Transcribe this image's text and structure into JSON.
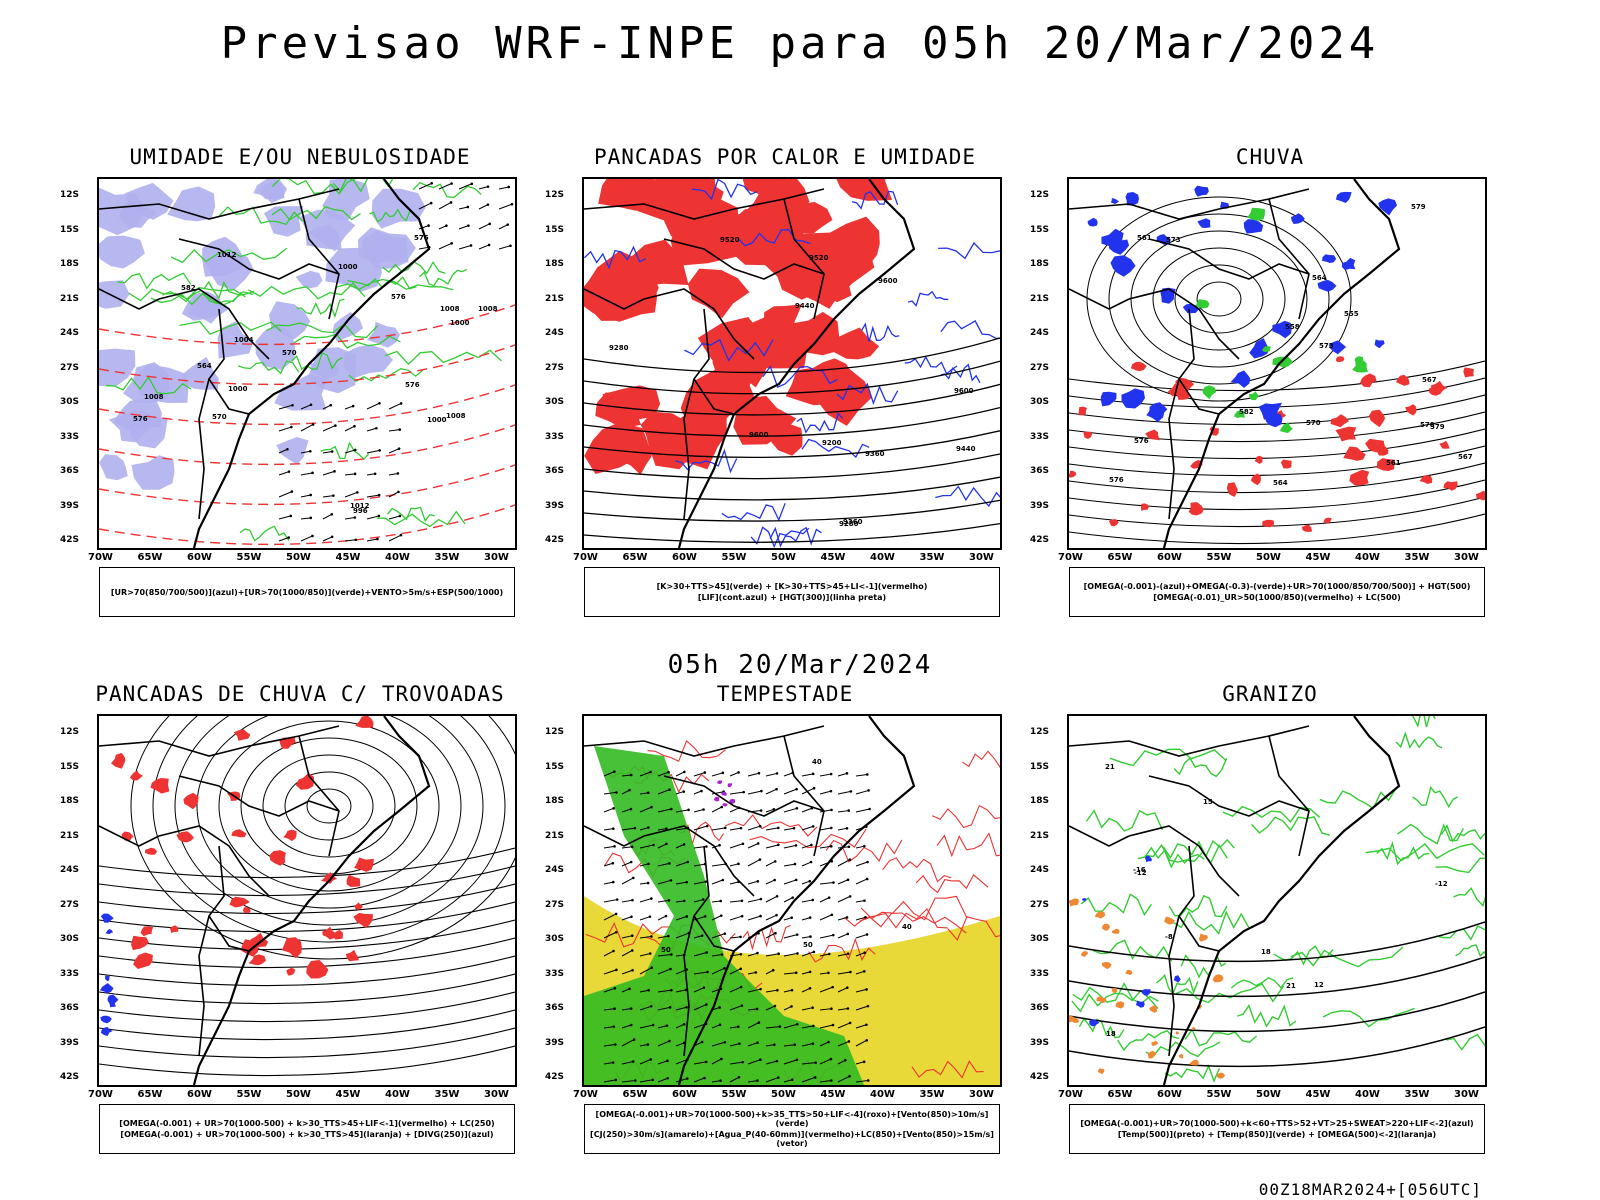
{
  "main_title": "Previsao WRF-INPE  para 05h 20/Mar/2024",
  "mid_title": "05h 20/Mar/2024",
  "footer": "00Z18MAR2024+[056UTC]",
  "lat_labels": [
    "12S",
    "15S",
    "18S",
    "21S",
    "24S",
    "27S",
    "30S",
    "33S",
    "36S",
    "39S",
    "42S"
  ],
  "lon_labels": [
    "70W",
    "65W",
    "60W",
    "55W",
    "50W",
    "45W",
    "40W",
    "35W",
    "30W"
  ],
  "colors": {
    "green": "#33cc33",
    "red": "#ee3333",
    "blue": "#2233ee",
    "lavender": "#b0b0ee",
    "yellow": "#e8d838",
    "orange": "#ee8833",
    "purple": "#aa22cc"
  },
  "panels": [
    {
      "title": "UMIDADE E/OU NEBULOSIDADE",
      "legend": [
        "[UR>70(850/700/500)](azul)+[UR>70(1000/850)](verde)+VENTO>5m/s+ESP(500/1000)"
      ],
      "contour_labels": [
        "1008",
        "1008",
        "1012",
        "1012",
        "1008",
        "1000",
        "1000",
        "1004",
        "1008",
        "1000",
        "996",
        "1000",
        "576",
        "582",
        "576",
        "576",
        "570",
        "576",
        "570",
        "564"
      ]
    },
    {
      "title": "PANCADAS POR CALOR E UMIDADE",
      "legend": [
        "[K>30+TTS>45](verde) + [K>30+TTS>45+LI<-1](vermelho)",
        "[LIF](cont.azul) + [HGT(300)](linha preta)"
      ],
      "contour_labels": [
        "9600",
        "9600",
        "9520",
        "9440",
        "9360",
        "9280",
        "9600",
        "9520",
        "9440",
        "9360",
        "9280",
        "9200"
      ]
    },
    {
      "title": "CHUVA",
      "legend": [
        "[OMEGA(-0.001)-(azul)+OMEGA(-0.3)-(verde)+UR>70(1000/850/700/500)] + HGT(500)",
        "[OMEGA(-0.01)_UR>50(1000/850)(vermelho) + LC(500)"
      ],
      "contour_labels": [
        "582",
        "579",
        "576",
        "573",
        "570",
        "567",
        "564",
        "561",
        "558",
        "555",
        "579",
        "576",
        "573",
        "570",
        "567",
        "564",
        "561"
      ]
    },
    {
      "title": "PANCADAS DE CHUVA C/ TROVOADAS",
      "legend": [
        "[OMEGA(-0.001) + UR>70(1000-500) + k>30_TTS>45+LIF<-1](vermelho) + LC(250)",
        "[OMEGA(-0.001) + UR>70(1000-500) + k>30_TTS>45](laranja) + [DIVG(250)](azul)"
      ],
      "contour_labels": []
    },
    {
      "title": "TEMPESTADE",
      "legend": [
        "[OMEGA(-0.001)+UR>70(1000-500)+k>35_TTS>50+LIF<-4](roxo)+[Vento(850)>10m/s](verde)",
        "[CJ(250)>30m/s](amarelo)+[Agua_P(40-60mm)](vermelho)+LC(850)+[Vento(850)>15m/s](vetor)"
      ],
      "contour_labels": [
        "40",
        "50",
        "50",
        "40"
      ]
    },
    {
      "title": "GRANIZO",
      "legend": [
        "[OMEGA(-0.001)+UR>70(1000-500)+k<60+TTS>52+VT>25+SWEAT>220+LIF<-2](azul)",
        "[Temp(500)](preto) + [Temp(850)](verde) + [OMEGA(500)<-2](laranja)"
      ],
      "contour_labels": [
        "-12",
        "-12",
        "-16",
        "-8",
        "12",
        "15",
        "18",
        "21",
        "21",
        "18"
      ]
    }
  ]
}
